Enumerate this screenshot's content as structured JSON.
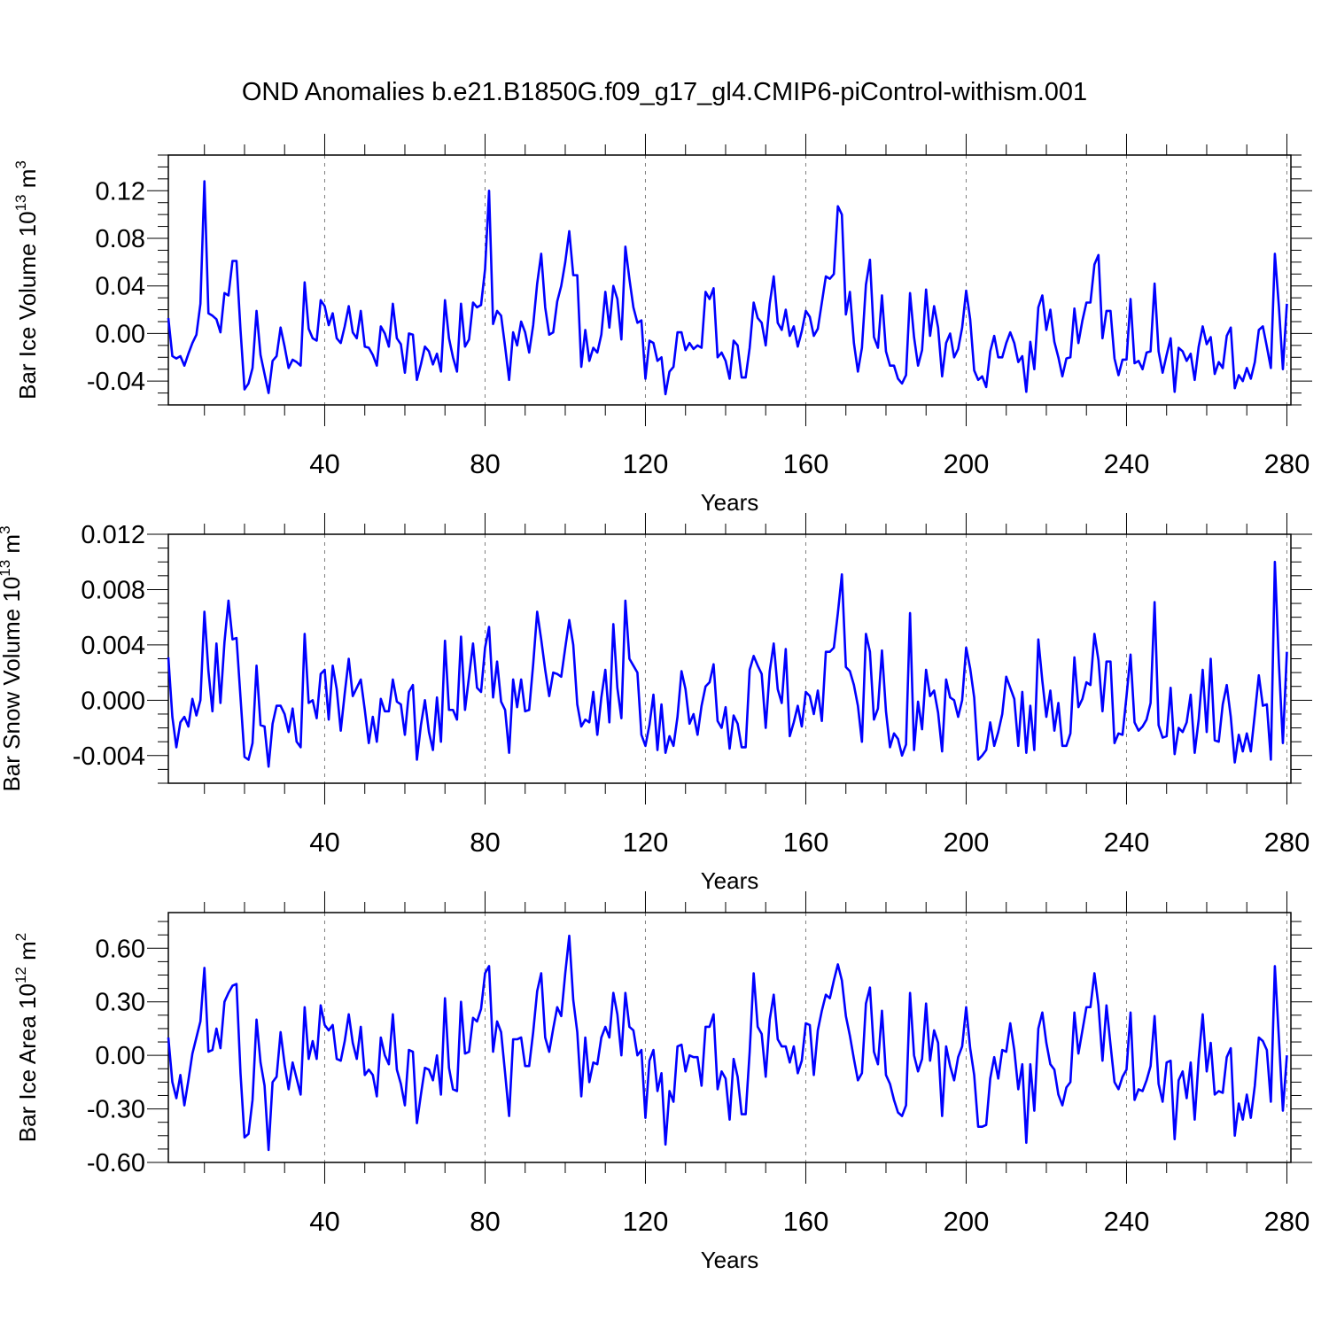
{
  "title": "OND Anomalies b.e21.B1850G.f09_g17_gl4.CMIP6-piControl-withism.001",
  "colors": {
    "line": "#0000ff",
    "axis": "#000000",
    "grid": "#7f7f7f"
  },
  "chart_data": [
    {
      "type": "line",
      "ylabel": {
        "pre": "Bar Ice Volume 10",
        "exp": "13",
        "post": " m",
        "unit_exp": "3"
      },
      "xlabel": "Years",
      "xlim": [
        1,
        281
      ],
      "ylim": [
        -0.06,
        0.15
      ],
      "xticks": [
        40,
        80,
        120,
        160,
        200,
        240,
        280
      ],
      "xtick_labels": [
        "40",
        "80",
        "120",
        "160",
        "200",
        "240",
        "280"
      ],
      "yticks": [
        -0.04,
        0.0,
        0.04,
        0.08,
        0.12
      ],
      "ytick_labels": [
        "-0.04",
        "0.00",
        "0.04",
        "0.08",
        "0.12"
      ],
      "x_start": 1,
      "series": [
        {
          "name": "Bar Ice Volume",
          "values": [
            0.013,
            -0.019,
            -0.021,
            -0.019,
            -0.027,
            -0.017,
            -0.008,
            -0.001,
            0.025,
            0.128,
            0.017,
            0.015,
            0.012,
            0.001,
            0.034,
            0.032,
            0.061,
            0.061,
            0.003,
            -0.047,
            -0.042,
            -0.029,
            0.019,
            -0.018,
            -0.034,
            -0.05,
            -0.023,
            -0.019,
            0.005,
            -0.011,
            -0.029,
            -0.022,
            -0.024,
            -0.027,
            0.043,
            0.004,
            -0.004,
            -0.006,
            0.028,
            0.023,
            0.007,
            0.017,
            -0.004,
            -0.008,
            0.006,
            0.023,
            0.001,
            -0.004,
            0.019,
            -0.011,
            -0.012,
            -0.018,
            -0.027,
            0.006,
            0.0,
            -0.011,
            0.025,
            -0.004,
            -0.009,
            -0.033,
            0.0,
            -0.001,
            -0.039,
            -0.026,
            -0.011,
            -0.015,
            -0.026,
            -0.017,
            -0.032,
            0.028,
            -0.004,
            -0.02,
            -0.032,
            0.025,
            -0.011,
            -0.005,
            0.026,
            0.022,
            0.024,
            0.054,
            0.12,
            0.008,
            0.019,
            0.015,
            -0.011,
            -0.039,
            0.001,
            -0.01,
            0.01,
            0.001,
            -0.016,
            0.007,
            0.042,
            0.067,
            0.022,
            -0.001,
            0.001,
            0.027,
            0.04,
            0.06,
            0.086,
            0.049,
            0.049,
            -0.028,
            0.003,
            -0.023,
            -0.012,
            -0.016,
            -0.001,
            0.035,
            0.005,
            0.04,
            0.029,
            -0.005,
            0.073,
            0.046,
            0.022,
            0.009,
            0.011,
            -0.038,
            -0.006,
            -0.008,
            -0.023,
            -0.02,
            -0.051,
            -0.032,
            -0.028,
            0.001,
            0.001,
            -0.014,
            -0.008,
            -0.013,
            -0.01,
            -0.012,
            0.035,
            0.029,
            0.038,
            -0.02,
            -0.016,
            -0.023,
            -0.038,
            -0.006,
            -0.01,
            -0.037,
            -0.037,
            -0.012,
            0.026,
            0.013,
            0.009,
            -0.01,
            0.025,
            0.048,
            0.009,
            0.003,
            0.02,
            -0.002,
            0.006,
            -0.011,
            0.002,
            0.019,
            0.014,
            -0.002,
            0.004,
            0.026,
            0.048,
            0.046,
            0.05,
            0.107,
            0.1,
            0.016,
            0.035,
            -0.008,
            -0.032,
            -0.012,
            0.041,
            0.062,
            -0.003,
            -0.012,
            0.032,
            -0.015,
            -0.027,
            -0.027,
            -0.038,
            -0.042,
            -0.035,
            0.034,
            -0.003,
            -0.027,
            -0.014,
            0.037,
            -0.002,
            0.023,
            0.005,
            -0.036,
            -0.008,
            0.0,
            -0.02,
            -0.013,
            0.005,
            0.036,
            0.012,
            -0.031,
            -0.039,
            -0.036,
            -0.045,
            -0.015,
            -0.002,
            -0.02,
            -0.02,
            -0.008,
            0.001,
            -0.008,
            -0.024,
            -0.019,
            -0.049,
            -0.007,
            -0.03,
            0.022,
            0.032,
            0.003,
            0.02,
            -0.007,
            -0.02,
            -0.036,
            -0.021,
            -0.02,
            0.021,
            -0.008,
            0.011,
            0.026,
            0.026,
            0.058,
            0.066,
            -0.004,
            0.019,
            0.019,
            -0.021,
            -0.035,
            -0.022,
            -0.022,
            0.029,
            -0.025,
            -0.023,
            -0.03,
            -0.016,
            -0.015,
            0.042,
            -0.015,
            -0.033,
            -0.018,
            -0.004,
            -0.049,
            -0.012,
            -0.015,
            -0.023,
            -0.017,
            -0.039,
            -0.011,
            0.006,
            -0.009,
            -0.003,
            -0.034,
            -0.024,
            -0.029,
            -0.002,
            0.005,
            -0.046,
            -0.035,
            -0.04,
            -0.029,
            -0.038,
            -0.024,
            0.003,
            0.006,
            -0.011,
            -0.029,
            0.067,
            0.023,
            -0.03,
            0.025
          ]
        }
      ]
    },
    {
      "type": "line",
      "ylabel": {
        "pre": "Bar Snow Volume 10",
        "exp": "13",
        "post": " m",
        "unit_exp": "3"
      },
      "xlabel": "Years",
      "xlim": [
        1,
        281
      ],
      "ylim": [
        -0.006,
        0.012
      ],
      "xticks": [
        40,
        80,
        120,
        160,
        200,
        240,
        280
      ],
      "xtick_labels": [
        "40",
        "80",
        "120",
        "160",
        "200",
        "240",
        "280"
      ],
      "yticks": [
        -0.004,
        0.0,
        0.004,
        0.008,
        0.012
      ],
      "ytick_labels": [
        "-0.004",
        "0.000",
        "0.004",
        "0.008",
        "0.012"
      ],
      "x_start": 1,
      "series": [
        {
          "name": "Bar Snow Volume",
          "values": [
            0.0031,
            -0.0012,
            -0.0034,
            -0.0016,
            -0.0012,
            -0.0019,
            0.0001,
            -0.0011,
            0.0,
            0.0064,
            0.0021,
            -0.0008,
            0.0041,
            -0.0002,
            0.0042,
            0.0072,
            0.0044,
            0.0045,
            0.0002,
            -0.0041,
            -0.0043,
            -0.0031,
            0.0025,
            -0.0018,
            -0.0019,
            -0.0048,
            -0.0017,
            -0.0004,
            -0.0004,
            -0.001,
            -0.0023,
            -0.0006,
            -0.003,
            -0.0034,
            0.0048,
            -0.0002,
            0.0,
            -0.0013,
            0.0019,
            0.0022,
            -0.0014,
            0.0025,
            0.0008,
            -0.0022,
            0.0005,
            0.003,
            0.0003,
            0.0009,
            0.0015,
            -0.0007,
            -0.0031,
            -0.0012,
            -0.003,
            0.0001,
            -0.0008,
            -0.0008,
            0.0015,
            -0.0001,
            -0.0003,
            -0.0025,
            0.0006,
            0.0011,
            -0.0043,
            -0.0018,
            0.0,
            -0.0023,
            -0.0036,
            0.0002,
            -0.003,
            0.0043,
            -0.0007,
            -0.0007,
            -0.0014,
            0.0046,
            -0.0007,
            0.0017,
            0.0041,
            0.0009,
            0.0006,
            0.0038,
            0.0053,
            0.0002,
            0.0028,
            -0.0001,
            -0.0007,
            -0.0038,
            0.0015,
            -0.0005,
            0.0015,
            -0.0008,
            -0.0007,
            0.0026,
            0.0064,
            0.0044,
            0.0022,
            0.0003,
            0.002,
            0.0019,
            0.0017,
            0.0038,
            0.0058,
            0.004,
            -0.0003,
            -0.0019,
            -0.0014,
            -0.0016,
            0.0006,
            -0.0025,
            0.0002,
            0.0022,
            -0.0016,
            0.0055,
            0.0009,
            -0.0013,
            0.0072,
            0.003,
            0.0025,
            0.002,
            -0.0025,
            -0.0033,
            -0.0018,
            0.0004,
            -0.0036,
            -0.0003,
            -0.0038,
            -0.0026,
            -0.0033,
            -0.0012,
            0.0021,
            0.0008,
            -0.0017,
            -0.001,
            -0.0025,
            -0.0004,
            0.001,
            0.0013,
            0.0026,
            -0.0015,
            -0.002,
            -0.0005,
            -0.0035,
            -0.0011,
            -0.0017,
            -0.0034,
            -0.0034,
            0.0022,
            0.0032,
            0.0025,
            0.0019,
            -0.002,
            0.0021,
            0.0041,
            0.0008,
            -0.0002,
            0.0037,
            -0.0026,
            -0.0016,
            -0.0004,
            -0.0019,
            0.0006,
            0.0003,
            -0.001,
            0.0007,
            -0.0015,
            0.0035,
            0.0035,
            0.0038,
            0.0063,
            0.0091,
            0.0024,
            0.0021,
            0.0011,
            -0.0004,
            -0.003,
            0.0048,
            0.0035,
            -0.0014,
            -0.0006,
            0.0036,
            -0.0008,
            -0.0034,
            -0.0024,
            -0.0028,
            -0.004,
            -0.0032,
            0.0063,
            -0.0036,
            -0.0001,
            -0.0021,
            0.0022,
            0.0003,
            0.0007,
            -0.0009,
            -0.0037,
            0.0015,
            0.0002,
            0.0,
            -0.0012,
            0.0,
            0.0038,
            0.0023,
            0.0002,
            -0.0043,
            -0.004,
            -0.0036,
            -0.0016,
            -0.0033,
            -0.0023,
            -0.001,
            0.0017,
            0.0009,
            0.0001,
            -0.0033,
            0.0006,
            -0.0038,
            -0.0004,
            -0.0036,
            0.0044,
            0.0014,
            -0.0012,
            0.0007,
            -0.0022,
            -0.0002,
            -0.0033,
            -0.0033,
            -0.0024,
            0.0031,
            -0.0005,
            0.0001,
            0.0013,
            0.0011,
            0.0048,
            0.0029,
            -0.0008,
            0.0028,
            0.0028,
            -0.0031,
            -0.0024,
            -0.0025,
            0.0003,
            0.0033,
            -0.0016,
            -0.0022,
            -0.0019,
            -0.0014,
            -0.0002,
            0.0071,
            -0.0018,
            -0.0027,
            -0.0026,
            0.0009,
            -0.0039,
            -0.002,
            -0.0023,
            -0.0016,
            0.0004,
            -0.0038,
            -0.0014,
            0.0022,
            -0.0023,
            0.003,
            -0.0029,
            -0.003,
            -0.0003,
            0.0011,
            -0.0012,
            -0.0045,
            -0.0025,
            -0.0037,
            -0.0024,
            -0.0037,
            -0.001,
            0.0018,
            -0.0004,
            -0.0003,
            -0.0043,
            0.01,
            0.0027,
            -0.0031,
            0.0035
          ]
        }
      ]
    },
    {
      "type": "line",
      "ylabel": {
        "pre": "Bar Ice Area 10",
        "exp": "12",
        "post": " m",
        "unit_exp": "2"
      },
      "xlabel": "Years",
      "xlim": [
        1,
        281
      ],
      "ylim": [
        -0.6,
        0.8
      ],
      "xticks": [
        40,
        80,
        120,
        160,
        200,
        240,
        280
      ],
      "xtick_labels": [
        "40",
        "80",
        "120",
        "160",
        "200",
        "240",
        "280"
      ],
      "yticks": [
        -0.6,
        -0.3,
        0.0,
        0.3,
        0.6
      ],
      "ytick_labels": [
        "-0.60",
        "-0.30",
        "0.00",
        "0.30",
        "0.60"
      ],
      "x_start": 1,
      "series": [
        {
          "name": "Bar Ice Area",
          "values": [
            0.1,
            -0.15,
            -0.24,
            -0.11,
            -0.28,
            -0.14,
            0.01,
            0.1,
            0.19,
            0.49,
            0.02,
            0.03,
            0.15,
            0.04,
            0.3,
            0.35,
            0.39,
            0.4,
            -0.1,
            -0.46,
            -0.44,
            -0.25,
            0.2,
            -0.04,
            -0.17,
            -0.53,
            -0.15,
            -0.12,
            0.13,
            -0.05,
            -0.19,
            -0.04,
            -0.13,
            -0.22,
            0.27,
            -0.02,
            0.08,
            -0.02,
            0.28,
            0.17,
            0.14,
            0.17,
            -0.02,
            -0.03,
            0.08,
            0.23,
            0.07,
            -0.02,
            0.16,
            -0.11,
            -0.08,
            -0.11,
            -0.23,
            0.1,
            0.0,
            -0.05,
            0.23,
            -0.08,
            -0.16,
            -0.28,
            0.03,
            0.02,
            -0.38,
            -0.22,
            -0.07,
            -0.08,
            -0.14,
            0.0,
            -0.22,
            0.32,
            -0.07,
            -0.19,
            -0.2,
            0.3,
            0.01,
            0.02,
            0.21,
            0.19,
            0.26,
            0.46,
            0.5,
            0.02,
            0.19,
            0.13,
            -0.1,
            -0.34,
            0.09,
            0.09,
            0.1,
            -0.06,
            -0.06,
            0.13,
            0.36,
            0.46,
            0.1,
            0.02,
            0.15,
            0.27,
            0.22,
            0.46,
            0.67,
            0.31,
            0.13,
            -0.23,
            0.1,
            -0.15,
            -0.04,
            -0.05,
            0.1,
            0.16,
            0.1,
            0.35,
            0.23,
            0.0,
            0.35,
            0.16,
            0.14,
            0.0,
            0.03,
            -0.35,
            -0.03,
            0.03,
            -0.2,
            -0.1,
            -0.5,
            -0.2,
            -0.26,
            0.05,
            0.06,
            -0.09,
            0.0,
            -0.01,
            -0.01,
            -0.17,
            0.16,
            0.16,
            0.23,
            -0.19,
            -0.09,
            -0.13,
            -0.36,
            -0.02,
            -0.12,
            -0.33,
            -0.33,
            0.02,
            0.46,
            0.16,
            0.12,
            -0.12,
            0.2,
            0.34,
            0.09,
            0.05,
            0.05,
            -0.04,
            0.05,
            -0.1,
            -0.03,
            0.18,
            0.17,
            -0.11,
            0.14,
            0.25,
            0.34,
            0.32,
            0.42,
            0.51,
            0.42,
            0.22,
            0.11,
            -0.02,
            -0.14,
            -0.1,
            0.29,
            0.38,
            0.02,
            -0.05,
            0.25,
            -0.11,
            -0.16,
            -0.25,
            -0.32,
            -0.34,
            -0.28,
            0.35,
            0.0,
            -0.09,
            -0.02,
            0.29,
            -0.03,
            0.14,
            0.07,
            -0.34,
            0.05,
            -0.06,
            -0.14,
            -0.01,
            0.05,
            0.27,
            0.04,
            -0.11,
            -0.4,
            -0.4,
            -0.39,
            -0.13,
            -0.01,
            -0.13,
            0.03,
            0.02,
            0.18,
            0.03,
            -0.19,
            -0.05,
            -0.49,
            -0.05,
            -0.31,
            0.15,
            0.24,
            0.07,
            -0.05,
            -0.08,
            -0.22,
            -0.28,
            -0.18,
            -0.15,
            0.24,
            0.01,
            0.14,
            0.27,
            0.27,
            0.46,
            0.28,
            -0.03,
            0.28,
            0.06,
            -0.15,
            -0.19,
            -0.12,
            -0.08,
            0.24,
            -0.25,
            -0.19,
            -0.2,
            -0.14,
            -0.06,
            0.22,
            -0.16,
            -0.26,
            -0.04,
            -0.03,
            -0.47,
            -0.14,
            -0.09,
            -0.24,
            -0.04,
            -0.36,
            -0.02,
            0.23,
            -0.09,
            0.07,
            -0.22,
            -0.2,
            -0.21,
            -0.01,
            0.04,
            -0.45,
            -0.27,
            -0.36,
            -0.22,
            -0.35,
            -0.17,
            0.1,
            0.08,
            0.03,
            -0.26,
            0.5,
            0.1,
            -0.31,
            0.0
          ]
        }
      ]
    }
  ]
}
